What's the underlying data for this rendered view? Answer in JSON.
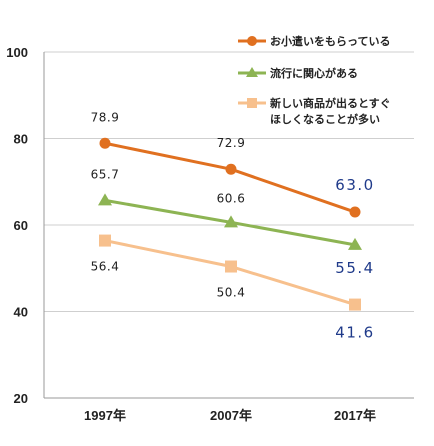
{
  "chart_data": {
    "type": "line",
    "categories": [
      "1997年",
      "2007年",
      "2017年"
    ],
    "ylim": [
      20,
      100
    ],
    "yticks": [
      20,
      40,
      60,
      80,
      100
    ],
    "grid": true,
    "legend_position": "top-right",
    "series": [
      {
        "name": "お小遣いをもらっている",
        "values": [
          78.9,
          72.9,
          63.0
        ],
        "labels": [
          "78.9",
          "72.9",
          "63.0"
        ],
        "color": "#e07020",
        "marker": "circle"
      },
      {
        "name": "流行に関心がある",
        "values": [
          65.7,
          60.6,
          55.4
        ],
        "labels": [
          "65.7",
          "60.6",
          "55.4"
        ],
        "color": "#8db453",
        "marker": "triangle"
      },
      {
        "name_lines": [
          "新しい商品が出るとすぐ",
          "ほしくなることが多い"
        ],
        "values": [
          56.4,
          50.4,
          41.6
        ],
        "labels": [
          "56.4",
          "50.4",
          "41.6"
        ],
        "color": "#f7c08d",
        "marker": "square"
      }
    ]
  }
}
